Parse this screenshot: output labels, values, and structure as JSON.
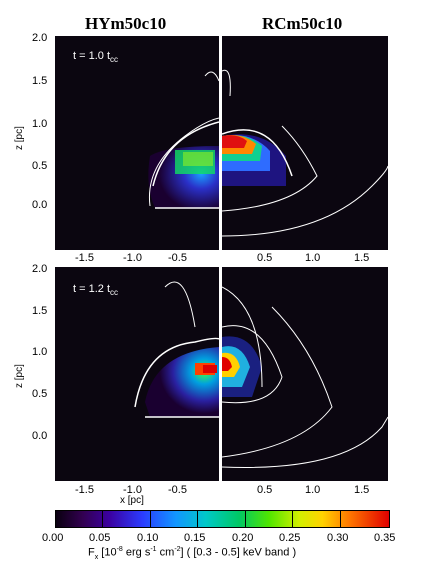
{
  "titles": {
    "left": "HYm50c10",
    "right": "RCm50c10"
  },
  "times": {
    "top": "t = 1.0 t",
    "bottom": "t = 1.2 t",
    "sub": "cc"
  },
  "y_ticks": [
    "2.0",
    "1.5",
    "1.0",
    "0.5",
    "0.0"
  ],
  "x_ticks_left": [
    "-1.5",
    "-1.0",
    "-0.5"
  ],
  "x_ticks_right": [
    "0.5",
    "1.0",
    "1.5"
  ],
  "axis_labels": {
    "y": "z [pc]",
    "x": "x [pc]"
  },
  "colorbar": {
    "ticks": [
      "0.00",
      "0.05",
      "0.10",
      "0.15",
      "0.20",
      "0.25",
      "0.30",
      "0.35"
    ],
    "label_main": "F",
    "label_sub": "x",
    "label_rest": " [10",
    "label_exp": "-8",
    "label_tail": " erg s",
    "label_exp2": "-1",
    "label_tail2": " cm",
    "label_exp3": "-2",
    "label_end": "] ( [0.3 - 0.5] keV band )"
  }
}
